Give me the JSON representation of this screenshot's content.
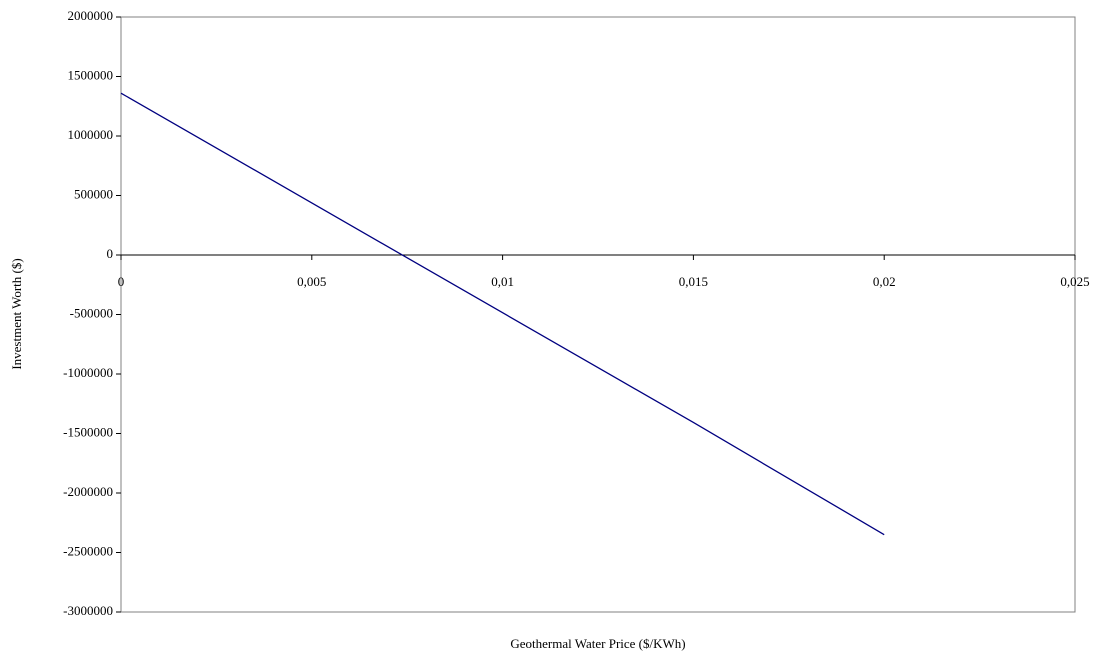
{
  "chart_data": {
    "type": "line",
    "x_label": "Geothermal Water Price ($/KWh)",
    "y_label": "Investment Worth ($)",
    "x": [
      0,
      0.005,
      0.01,
      0.015,
      0.02
    ],
    "series": [
      {
        "name": "Investment Worth",
        "color": "#000080",
        "values": [
          1360000,
          437500,
          -485000,
          -1407500,
          -2350000
        ]
      }
    ],
    "xlim": [
      0,
      0.025
    ],
    "xticks": [
      0,
      {
        "value": 0.005,
        "label": "0,005"
      },
      {
        "value": 0.01,
        "label": "0,01"
      },
      {
        "value": 0.015,
        "label": "0,015"
      },
      {
        "value": 0.02,
        "label": "0,02"
      },
      {
        "value": 0.025,
        "label": "0,025"
      }
    ],
    "ylim": [
      -3000000,
      2000000
    ],
    "yticks": [
      -3000000,
      -2500000,
      -2000000,
      -1500000,
      -1000000,
      -500000,
      0,
      500000,
      1000000,
      1500000,
      2000000
    ],
    "grid": false
  }
}
